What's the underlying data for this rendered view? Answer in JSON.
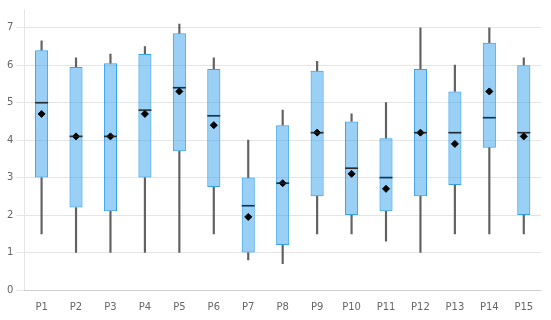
{
  "chart_data": {
    "type": "box",
    "categories": [
      "P1",
      "P2",
      "P3",
      "P4",
      "P5",
      "P6",
      "P7",
      "P8",
      "P9",
      "P10",
      "P11",
      "P12",
      "P13",
      "P14",
      "P15"
    ],
    "boxes": [
      {
        "whislo": 1.5,
        "q1": 3.0,
        "med": 5.0,
        "q3": 6.4,
        "whishi": 6.65,
        "mean": 4.7
      },
      {
        "whislo": 1.0,
        "q1": 2.2,
        "med": 4.1,
        "q3": 5.95,
        "whishi": 6.2,
        "mean": 4.1
      },
      {
        "whislo": 1.0,
        "q1": 2.1,
        "med": 4.1,
        "q3": 6.05,
        "whishi": 6.3,
        "mean": 4.1
      },
      {
        "whislo": 1.0,
        "q1": 3.0,
        "med": 4.8,
        "q3": 6.3,
        "whishi": 6.5,
        "mean": 4.7
      },
      {
        "whislo": 1.0,
        "q1": 3.7,
        "med": 5.4,
        "q3": 6.85,
        "whishi": 7.1,
        "mean": 5.3
      },
      {
        "whislo": 1.5,
        "q1": 2.75,
        "med": 4.65,
        "q3": 5.9,
        "whishi": 6.2,
        "mean": 4.4
      },
      {
        "whislo": 0.8,
        "q1": 1.0,
        "med": 2.25,
        "q3": 3.0,
        "whishi": 4.0,
        "mean": 1.95
      },
      {
        "whislo": 0.7,
        "q1": 1.2,
        "med": 2.85,
        "q3": 4.4,
        "whishi": 4.8,
        "mean": 2.85
      },
      {
        "whislo": 1.5,
        "q1": 2.5,
        "med": 4.2,
        "q3": 5.85,
        "whishi": 6.1,
        "mean": 4.2
      },
      {
        "whislo": 1.5,
        "q1": 2.0,
        "med": 3.25,
        "q3": 4.5,
        "whishi": 4.7,
        "mean": 3.1
      },
      {
        "whislo": 1.3,
        "q1": 2.1,
        "med": 3.0,
        "q3": 4.05,
        "whishi": 5.0,
        "mean": 2.7
      },
      {
        "whislo": 1.0,
        "q1": 2.5,
        "med": 4.2,
        "q3": 5.9,
        "whishi": 7.0,
        "mean": 4.2
      },
      {
        "whislo": 1.5,
        "q1": 2.8,
        "med": 4.2,
        "q3": 5.3,
        "whishi": 6.0,
        "mean": 3.9
      },
      {
        "whislo": 1.5,
        "q1": 3.8,
        "med": 4.6,
        "q3": 6.6,
        "whishi": 7.0,
        "mean": 5.3
      },
      {
        "whislo": 1.5,
        "q1": 2.0,
        "med": 4.2,
        "q3": 6.0,
        "whishi": 6.2,
        "mean": 4.1
      }
    ],
    "ylim": [
      0,
      7.5
    ],
    "yticks": [
      0,
      1,
      2,
      3,
      4,
      5,
      6,
      7
    ],
    "grid": true
  }
}
